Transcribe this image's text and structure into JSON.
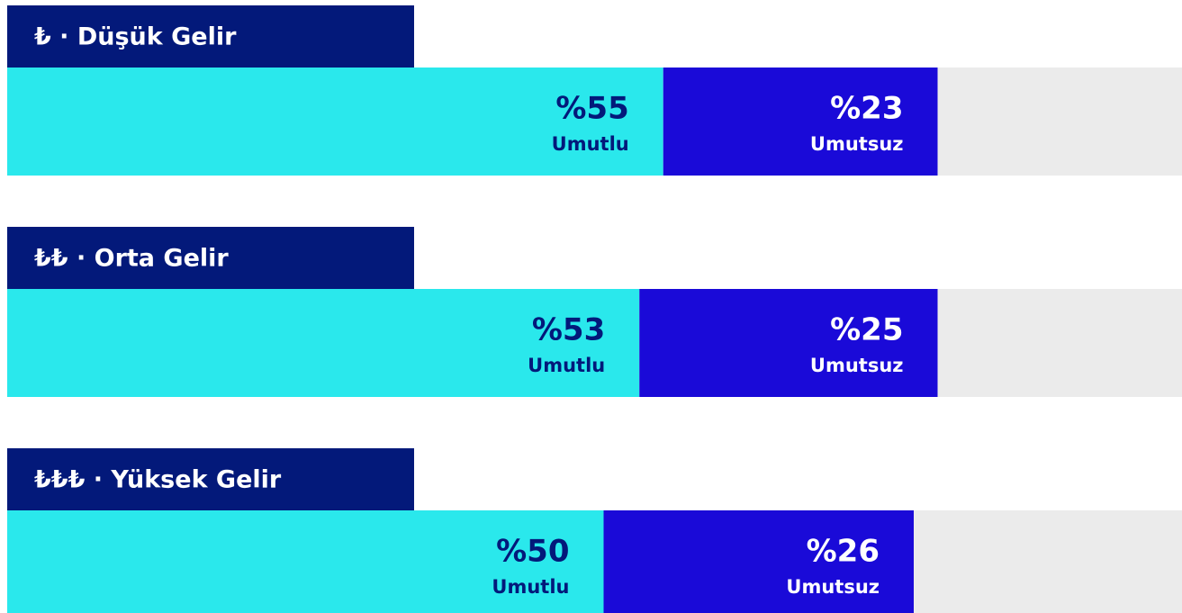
{
  "chart_data": {
    "type": "bar",
    "orientation": "horizontal",
    "stacked": true,
    "categories": [
      "₺ · Düşük Gelir",
      "₺₺ · Orta Gelir",
      "₺₺₺ · Yüksek Gelir"
    ],
    "series": [
      {
        "name": "Umutlu",
        "color": "#2ae8ec",
        "values": [
          55,
          53,
          50
        ],
        "value_labels": [
          "%55",
          "%53",
          "%50"
        ]
      },
      {
        "name": "Umutsuz",
        "color": "#1a0ad8",
        "values": [
          23,
          25,
          26
        ],
        "value_labels": [
          "%23",
          "%25",
          "%26"
        ]
      }
    ],
    "xlim": [
      0,
      100
    ],
    "header_color": "#03197a",
    "background_color": "#ebebeb"
  }
}
